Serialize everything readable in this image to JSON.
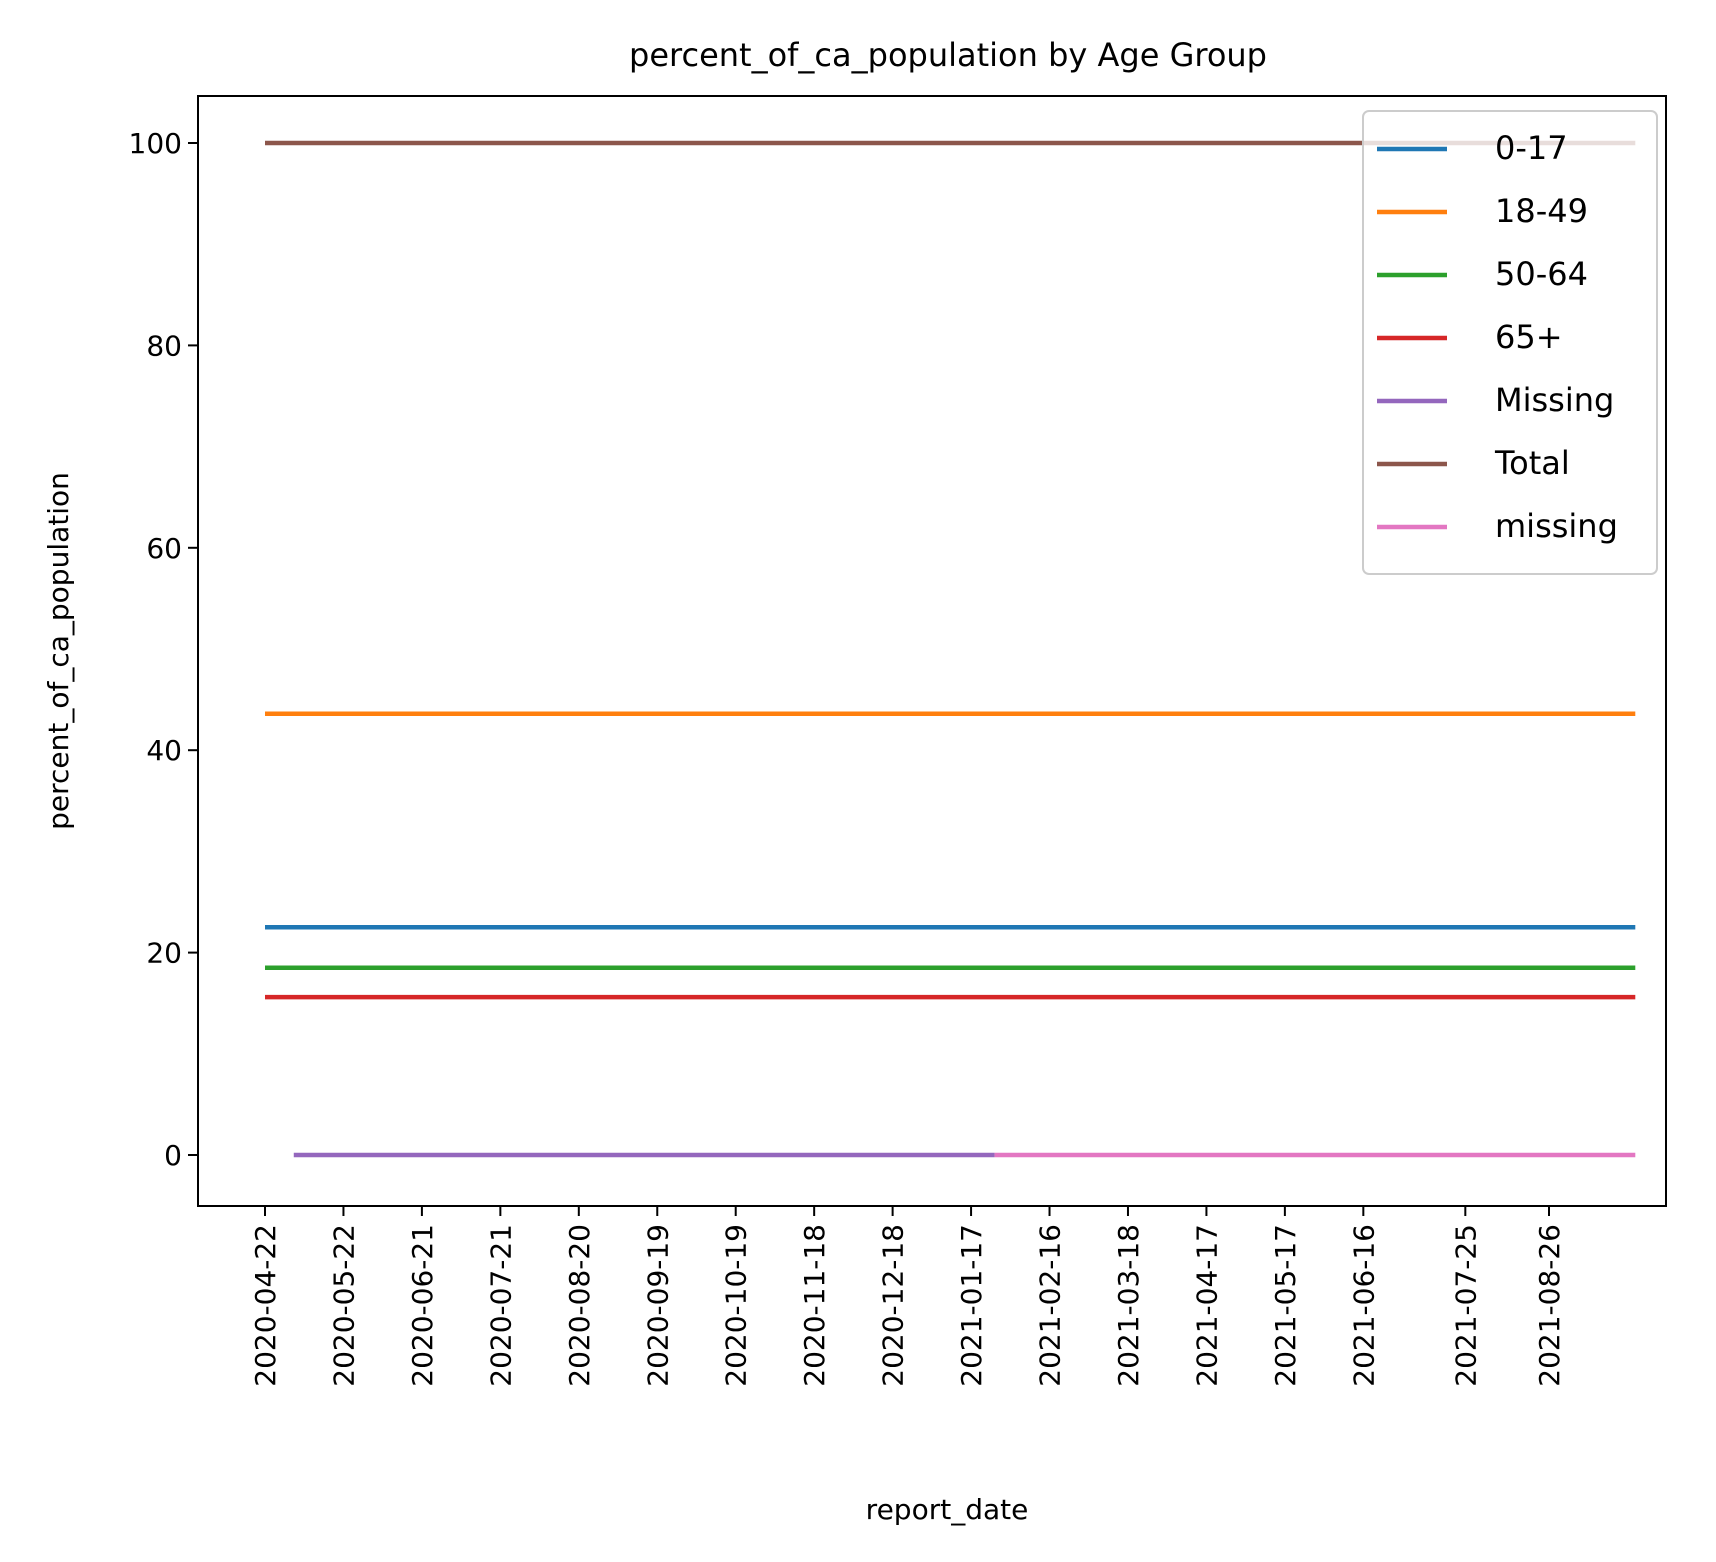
{
  "chart_data": {
    "type": "line",
    "title": "percent_of_ca_population by Age Group",
    "xlabel": "report_date",
    "ylabel": "percent_of_ca_population",
    "x_tick_labels": [
      "2020-04-22",
      "2020-05-22",
      "2020-06-21",
      "2020-07-21",
      "2020-08-20",
      "2020-09-19",
      "2020-10-19",
      "2020-11-18",
      "2020-12-18",
      "2021-01-17",
      "2021-02-16",
      "2021-03-18",
      "2021-04-17",
      "2021-05-17",
      "2021-06-16",
      "2021-07-25",
      "2021-08-26"
    ],
    "y_ticks": [
      0,
      20,
      40,
      60,
      80,
      100
    ],
    "ylim": [
      -5,
      105
    ],
    "grid": false,
    "legend_position": "top-right",
    "series": [
      {
        "name": "0-17",
        "color": "#1f77b4",
        "x_start": "2020-04-22",
        "x_end": "2021-09-28",
        "value": 22.5
      },
      {
        "name": "18-49",
        "color": "#ff7f0e",
        "x_start": "2020-04-22",
        "x_end": "2021-09-28",
        "value": 43.6
      },
      {
        "name": "50-64",
        "color": "#2ca02c",
        "x_start": "2020-04-22",
        "x_end": "2021-09-28",
        "value": 18.5
      },
      {
        "name": "65+",
        "color": "#d62728",
        "x_start": "2020-04-22",
        "x_end": "2021-09-28",
        "value": 15.6
      },
      {
        "name": "Missing",
        "color": "#9467bd",
        "x_start": "2020-05-03",
        "x_end": "2021-01-26",
        "value": 0
      },
      {
        "name": "Total",
        "color": "#8c564b",
        "x_start": "2020-04-22",
        "x_end": "2021-09-28",
        "value": 100
      },
      {
        "name": "missing",
        "color": "#e377c2",
        "x_start": "2021-01-26",
        "x_end": "2021-09-28",
        "value": 0
      }
    ]
  }
}
